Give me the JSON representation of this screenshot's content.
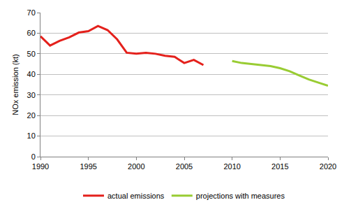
{
  "chart_data": {
    "type": "line",
    "y_label": "NOx emission (kt)",
    "x": [
      1990,
      1991,
      1992,
      1993,
      1994,
      1995,
      1996,
      1997,
      1998,
      1999,
      2000,
      2001,
      2002,
      2003,
      2004,
      2005,
      2006,
      2007,
      2008,
      2009,
      2010,
      2011,
      2012,
      2013,
      2014,
      2015,
      2016,
      2017,
      2018,
      2019,
      2020
    ],
    "series": [
      {
        "name": "actual emissions",
        "color": "#e4211c",
        "values": [
          58.5,
          54,
          56.3,
          58,
          60.3,
          61,
          63.5,
          61.5,
          57,
          50.5,
          50,
          50.5,
          50,
          49,
          48.5,
          45.5,
          47,
          44.5,
          null,
          null,
          null,
          null,
          null,
          null,
          null,
          null,
          null,
          null,
          null,
          null,
          null
        ]
      },
      {
        "name": "projections with measures",
        "color": "#99cc33",
        "values": [
          null,
          null,
          null,
          null,
          null,
          null,
          null,
          null,
          null,
          null,
          null,
          null,
          null,
          null,
          null,
          null,
          null,
          null,
          null,
          null,
          46.5,
          45.5,
          45,
          44.5,
          44,
          43,
          41.5,
          39.5,
          37.5,
          36,
          34.5
        ]
      }
    ],
    "xlim": [
      1990,
      2020
    ],
    "xticks": [
      1990,
      1995,
      2000,
      2005,
      2010,
      2015,
      2020
    ],
    "ylim": [
      0,
      70
    ],
    "yticks": [
      0,
      10,
      20,
      30,
      40,
      50,
      60,
      70
    ],
    "grid": true,
    "legend": "bottom"
  }
}
